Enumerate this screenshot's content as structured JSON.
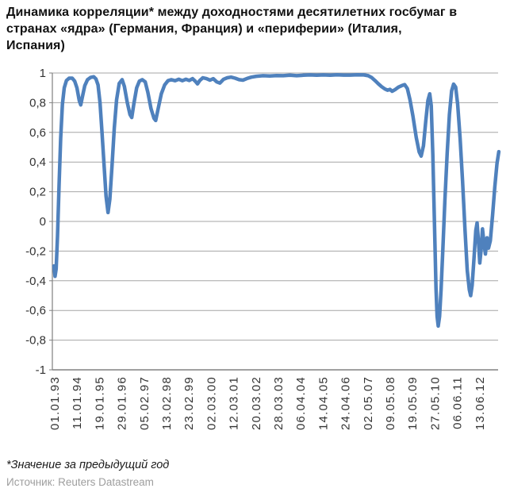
{
  "title": "Динамика корреляции* между доходностями десятилетних госбумаг в странах «ядра» (Германия, Франция) и «периферии» (Италия, Испания)",
  "footnote": "*Значение за предыдущий год",
  "source": "Источник: Reuters Datastream",
  "chart_data": {
    "type": "line",
    "title": "Динамика корреляции между доходностями десятилетних госбумаг «ядра» и «периферии»",
    "xlabel": "",
    "ylabel": "",
    "ylim": [
      -1,
      1
    ],
    "grid": true,
    "legend": "none",
    "line_color": "#4F81BD",
    "grid_color": "#A6A6A6",
    "axis_color": "#808080",
    "tick_label_color": "#333333",
    "y_ticks": [
      1,
      0.8,
      0.6,
      0.4,
      0.2,
      0,
      -0.2,
      -0.4,
      -0.6,
      -0.8,
      -1
    ],
    "y_tick_labels": [
      "1",
      "0,8",
      "0,6",
      "0,4",
      "0,2",
      "0",
      "-0,2",
      "-0,4",
      "-0,6",
      "-0,8",
      "-1"
    ],
    "x_tick_labels": [
      "01.01.93",
      "11.01.94",
      "19.01.95",
      "29.01.96",
      "05.02.97",
      "13.02.98",
      "23.02.99",
      "02.03.00",
      "12.03.01",
      "20.03.02",
      "28.03.03",
      "06.04.04",
      "14.04.05",
      "24.04.06",
      "02.05.07",
      "09.05.08",
      "19.05.09",
      "27.05.10",
      "06.06.11",
      "13.06.12"
    ],
    "x_unit": "позиция в единицах годовых меток оси X (0 = 01.01.93, 19 = 13.06.12)",
    "series": [
      {
        "points": [
          [
            0.0,
            -0.3
          ],
          [
            0.05,
            -0.37
          ],
          [
            0.1,
            -0.32
          ],
          [
            0.16,
            -0.1
          ],
          [
            0.23,
            0.25
          ],
          [
            0.3,
            0.56
          ],
          [
            0.38,
            0.79
          ],
          [
            0.46,
            0.9
          ],
          [
            0.56,
            0.95
          ],
          [
            0.68,
            0.965
          ],
          [
            0.82,
            0.965
          ],
          [
            0.93,
            0.945
          ],
          [
            1.03,
            0.9
          ],
          [
            1.13,
            0.815
          ],
          [
            1.2,
            0.785
          ],
          [
            1.28,
            0.845
          ],
          [
            1.38,
            0.915
          ],
          [
            1.5,
            0.955
          ],
          [
            1.64,
            0.97
          ],
          [
            1.78,
            0.975
          ],
          [
            1.88,
            0.96
          ],
          [
            1.97,
            0.92
          ],
          [
            2.06,
            0.8
          ],
          [
            2.15,
            0.6
          ],
          [
            2.24,
            0.38
          ],
          [
            2.33,
            0.17
          ],
          [
            2.42,
            0.06
          ],
          [
            2.5,
            0.15
          ],
          [
            2.6,
            0.38
          ],
          [
            2.7,
            0.63
          ],
          [
            2.8,
            0.82
          ],
          [
            2.92,
            0.93
          ],
          [
            3.05,
            0.955
          ],
          [
            3.15,
            0.91
          ],
          [
            3.28,
            0.8
          ],
          [
            3.4,
            0.72
          ],
          [
            3.48,
            0.7
          ],
          [
            3.58,
            0.8
          ],
          [
            3.7,
            0.9
          ],
          [
            3.82,
            0.945
          ],
          [
            3.95,
            0.955
          ],
          [
            4.08,
            0.94
          ],
          [
            4.2,
            0.87
          ],
          [
            4.34,
            0.76
          ],
          [
            4.47,
            0.695
          ],
          [
            4.55,
            0.68
          ],
          [
            4.66,
            0.76
          ],
          [
            4.8,
            0.86
          ],
          [
            4.95,
            0.92
          ],
          [
            5.1,
            0.948
          ],
          [
            5.25,
            0.955
          ],
          [
            5.42,
            0.948
          ],
          [
            5.58,
            0.958
          ],
          [
            5.74,
            0.948
          ],
          [
            5.9,
            0.958
          ],
          [
            6.05,
            0.95
          ],
          [
            6.2,
            0.962
          ],
          [
            6.32,
            0.945
          ],
          [
            6.42,
            0.927
          ],
          [
            6.52,
            0.95
          ],
          [
            6.66,
            0.968
          ],
          [
            6.82,
            0.962
          ],
          [
            6.98,
            0.952
          ],
          [
            7.12,
            0.962
          ],
          [
            7.28,
            0.94
          ],
          [
            7.42,
            0.932
          ],
          [
            7.58,
            0.958
          ],
          [
            7.75,
            0.968
          ],
          [
            7.92,
            0.972
          ],
          [
            8.1,
            0.965
          ],
          [
            8.28,
            0.955
          ],
          [
            8.45,
            0.952
          ],
          [
            8.63,
            0.963
          ],
          [
            8.83,
            0.972
          ],
          [
            9.05,
            0.978
          ],
          [
            9.35,
            0.982
          ],
          [
            9.65,
            0.98
          ],
          [
            9.95,
            0.983
          ],
          [
            10.25,
            0.982
          ],
          [
            10.55,
            0.985
          ],
          [
            10.85,
            0.982
          ],
          [
            11.15,
            0.985
          ],
          [
            11.45,
            0.987
          ],
          [
            11.75,
            0.985
          ],
          [
            12.05,
            0.987
          ],
          [
            12.35,
            0.985
          ],
          [
            12.65,
            0.988
          ],
          [
            12.95,
            0.986
          ],
          [
            13.25,
            0.986
          ],
          [
            13.55,
            0.988
          ],
          [
            13.85,
            0.987
          ],
          [
            14.05,
            0.982
          ],
          [
            14.2,
            0.97
          ],
          [
            14.35,
            0.95
          ],
          [
            14.5,
            0.928
          ],
          [
            14.65,
            0.908
          ],
          [
            14.8,
            0.892
          ],
          [
            14.92,
            0.884
          ],
          [
            15.02,
            0.89
          ],
          [
            15.12,
            0.877
          ],
          [
            15.25,
            0.888
          ],
          [
            15.4,
            0.905
          ],
          [
            15.55,
            0.915
          ],
          [
            15.68,
            0.922
          ],
          [
            15.8,
            0.895
          ],
          [
            15.92,
            0.82
          ],
          [
            16.05,
            0.71
          ],
          [
            16.2,
            0.565
          ],
          [
            16.33,
            0.468
          ],
          [
            16.42,
            0.44
          ],
          [
            16.52,
            0.51
          ],
          [
            16.62,
            0.67
          ],
          [
            16.72,
            0.815
          ],
          [
            16.8,
            0.86
          ],
          [
            16.87,
            0.78
          ],
          [
            16.94,
            0.45
          ],
          [
            17.01,
            0.0
          ],
          [
            17.08,
            -0.45
          ],
          [
            17.13,
            -0.64
          ],
          [
            17.18,
            -0.705
          ],
          [
            17.24,
            -0.64
          ],
          [
            17.31,
            -0.46
          ],
          [
            17.39,
            -0.18
          ],
          [
            17.48,
            0.14
          ],
          [
            17.58,
            0.46
          ],
          [
            17.68,
            0.72
          ],
          [
            17.78,
            0.88
          ],
          [
            17.87,
            0.925
          ],
          [
            17.96,
            0.905
          ],
          [
            18.05,
            0.79
          ],
          [
            18.16,
            0.56
          ],
          [
            18.27,
            0.27
          ],
          [
            18.38,
            -0.06
          ],
          [
            18.48,
            -0.33
          ],
          [
            18.57,
            -0.46
          ],
          [
            18.63,
            -0.5
          ],
          [
            18.7,
            -0.43
          ],
          [
            18.78,
            -0.25
          ],
          [
            18.86,
            -0.06
          ],
          [
            18.92,
            -0.01
          ],
          [
            18.98,
            -0.13
          ],
          [
            19.04,
            -0.28
          ],
          [
            19.1,
            -0.19
          ],
          [
            19.16,
            -0.05
          ],
          [
            19.23,
            -0.15
          ],
          [
            19.29,
            -0.22
          ],
          [
            19.36,
            -0.11
          ],
          [
            19.43,
            -0.18
          ],
          [
            19.51,
            -0.13
          ],
          [
            19.61,
            0.04
          ],
          [
            19.71,
            0.23
          ],
          [
            19.81,
            0.39
          ],
          [
            19.89,
            0.47
          ]
        ]
      }
    ]
  }
}
